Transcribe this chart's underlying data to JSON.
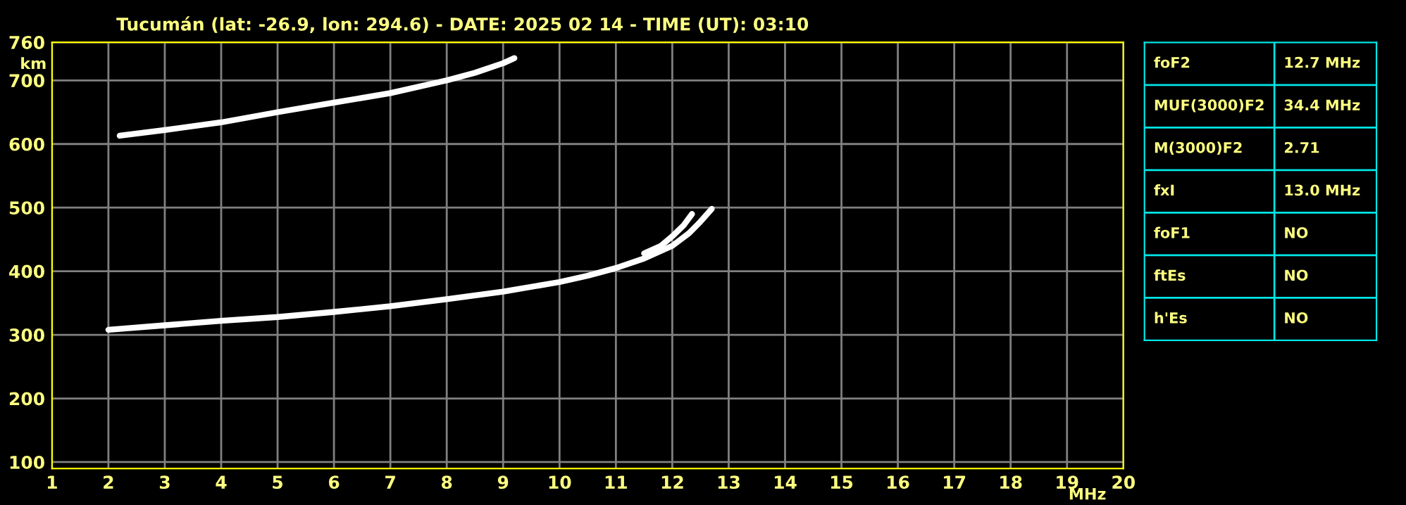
{
  "chart_data": [
    {
      "type": "line",
      "title": "Tucumán (lat: -26.9, lon: 294.6) - DATE: 2025 02 14 - TIME (UT): 03:10",
      "xlabel": "MHz",
      "ylabel": "km",
      "xlim": [
        1,
        20
      ],
      "ylim": [
        90,
        760
      ],
      "xticks": [
        1,
        2,
        3,
        4,
        5,
        6,
        7,
        8,
        9,
        10,
        11,
        12,
        13,
        14,
        15,
        16,
        17,
        18,
        19,
        20
      ],
      "yticks": [
        100,
        200,
        300,
        400,
        500,
        600,
        700,
        760
      ],
      "grid": true,
      "line_style": "solid",
      "marker": "none",
      "series": [
        {
          "color": "#ffffff",
          "x": [
            2,
            3,
            4,
            5,
            6,
            7,
            8,
            9,
            10,
            10.5,
            11,
            11.5,
            12,
            12.3,
            12.5,
            12.7
          ],
          "values": [
            308,
            315,
            322,
            328,
            336,
            345,
            356,
            368,
            383,
            393,
            405,
            420,
            440,
            460,
            478,
            498
          ]
        },
        {
          "color": "#ffffff",
          "x": [
            11.5,
            11.8,
            12.0,
            12.2,
            12.35
          ],
          "values": [
            428,
            440,
            455,
            472,
            490
          ]
        },
        {
          "color": "#ffffff",
          "x": [
            2.2,
            3,
            4,
            5,
            6,
            7,
            8,
            8.5,
            9,
            9.2
          ],
          "values": [
            613,
            622,
            634,
            650,
            665,
            680,
            700,
            712,
            727,
            735
          ]
        }
      ]
    },
    {
      "type": "other",
      "annotations": [
        "foF2",
        "12.7 MHz",
        "MUF(3000)F2",
        "34.4 MHz",
        "M(3000)F2",
        "2.71",
        "fxI",
        "13.0 MHz",
        "foF1",
        "NO",
        "ftEs",
        "NO",
        "h'Es",
        "NO"
      ]
    }
  ]
}
